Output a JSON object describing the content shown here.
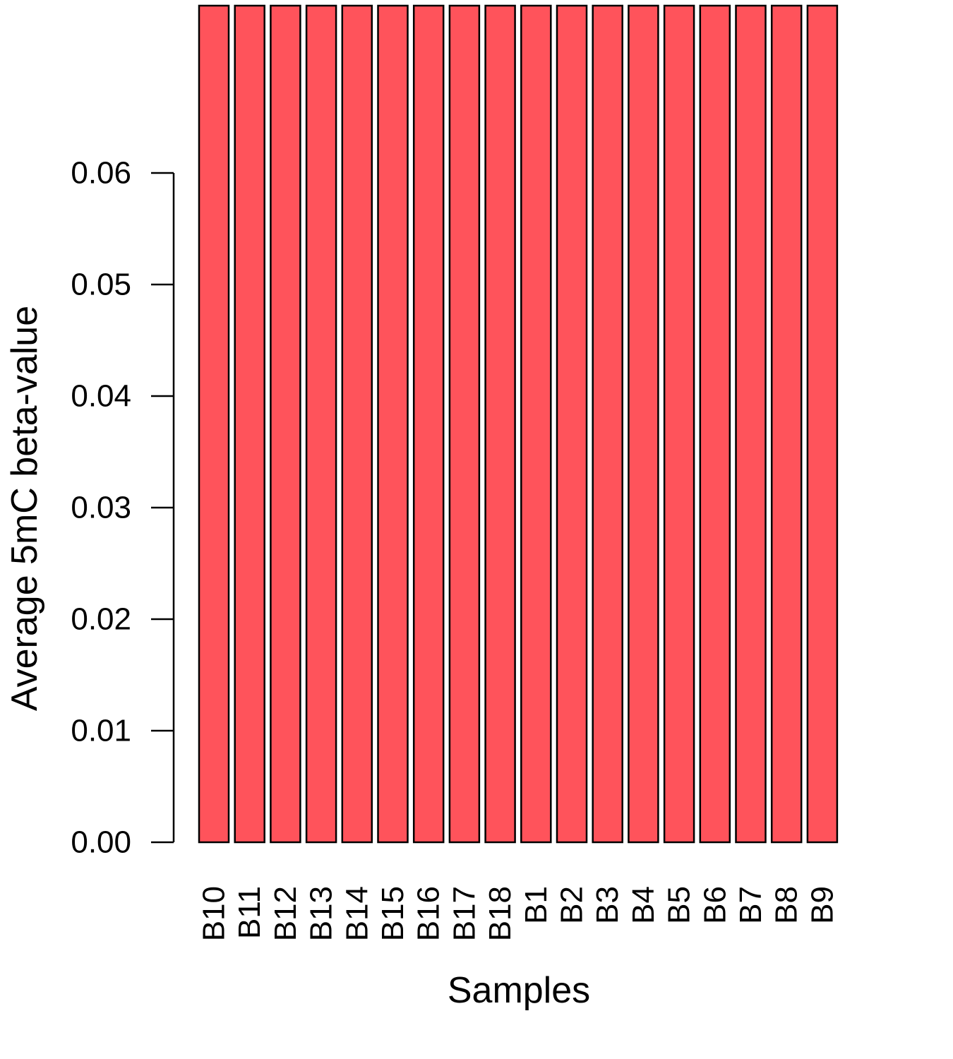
{
  "chart_data": {
    "type": "bar",
    "title": "",
    "xlabel": "Samples",
    "ylabel": "Average 5mC beta-value",
    "categories": [
      "B10",
      "B11",
      "B12",
      "B13",
      "B14",
      "B15",
      "B16",
      "B17",
      "B18",
      "B1",
      "B2",
      "B3",
      "B4",
      "B5",
      "B6",
      "B7",
      "B8",
      "B9"
    ],
    "values": [
      0.075,
      0.075,
      0.075,
      0.075,
      0.075,
      0.075,
      0.075,
      0.075,
      0.075,
      0.075,
      0.075,
      0.075,
      0.075,
      0.075,
      0.075,
      0.075,
      0.075,
      0.075
    ],
    "yticks": [
      0,
      0.01,
      0.02,
      0.03,
      0.04,
      0.05,
      0.06
    ],
    "ytick_labels": [
      "0.00",
      "0.01",
      "0.02",
      "0.03",
      "0.04",
      "0.05",
      "0.06"
    ],
    "bar_color": "#ff535b",
    "bar_border_color": "#000000",
    "grid": false,
    "legend": "none"
  }
}
